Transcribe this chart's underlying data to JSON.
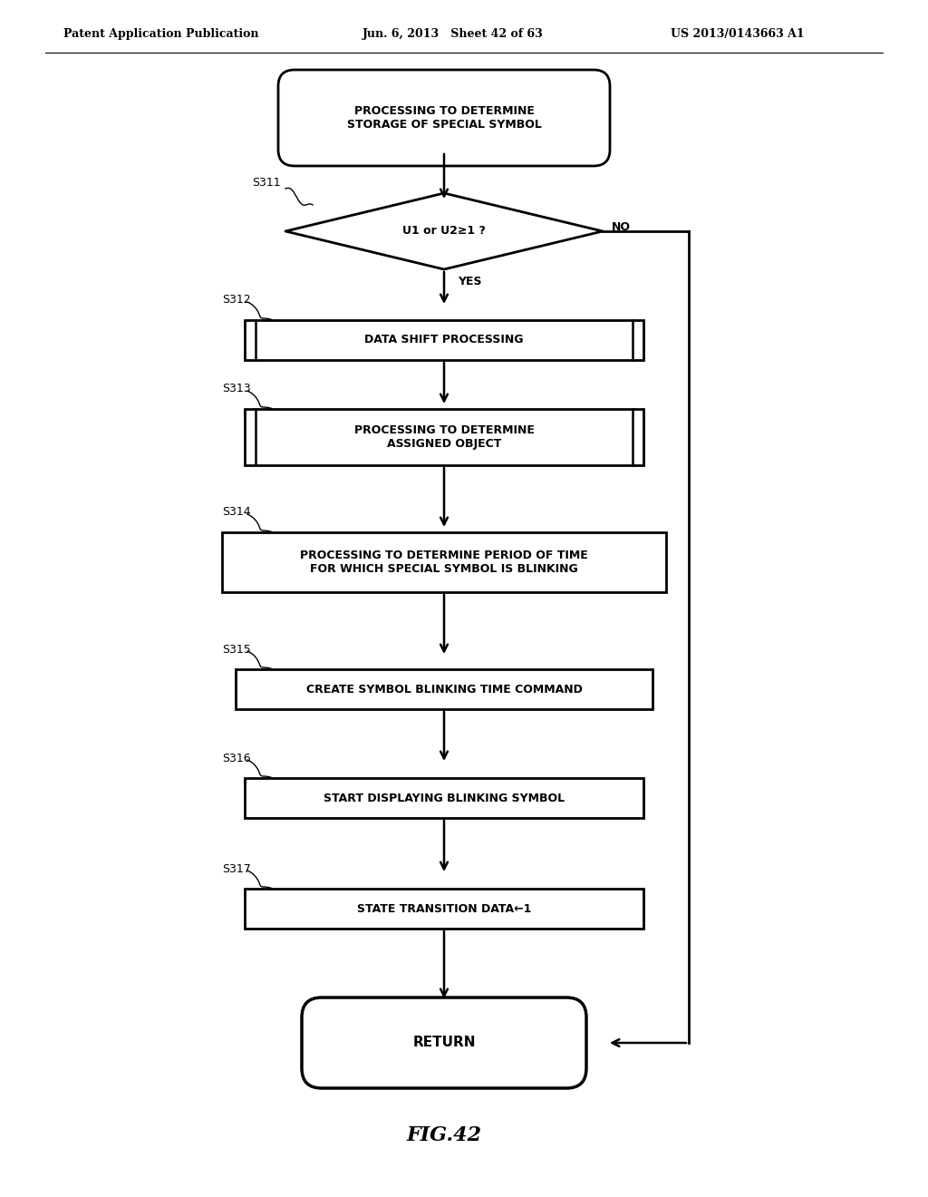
{
  "bg_color": "#ffffff",
  "header_left": "Patent Application Publication",
  "header_mid": "Jun. 6, 2013   Sheet 42 of 63",
  "header_right": "US 2013/0143663 A1",
  "footer": "FIG.42",
  "title_text": "PROCESSING TO DETERMINE\nSTORAGE OF SPECIAL SYMBOL",
  "diamond_text": "U1 or U2≥1 ?",
  "diamond_yes": "YES",
  "diamond_no": "NO",
  "diamond_label": "S311",
  "boxes": [
    {
      "label": "S312",
      "text": "DATA SHIFT PROCESSING",
      "double": true
    },
    {
      "label": "S313",
      "text": "PROCESSING TO DETERMINE\nASSIGNED OBJECT",
      "double": true
    },
    {
      "label": "S314",
      "text": "PROCESSING TO DETERMINE PERIOD OF TIME\nFOR WHICH SPECIAL SYMBOL IS BLINKING",
      "double": false
    },
    {
      "label": "S315",
      "text": "CREATE SYMBOL BLINKING TIME COMMAND",
      "double": false
    },
    {
      "label": "S316",
      "text": "START DISPLAYING BLINKING SYMBOL",
      "double": false
    },
    {
      "label": "S317",
      "text": "STATE TRANSITION DATA←1",
      "double": false
    }
  ],
  "return_text": "RETURN"
}
